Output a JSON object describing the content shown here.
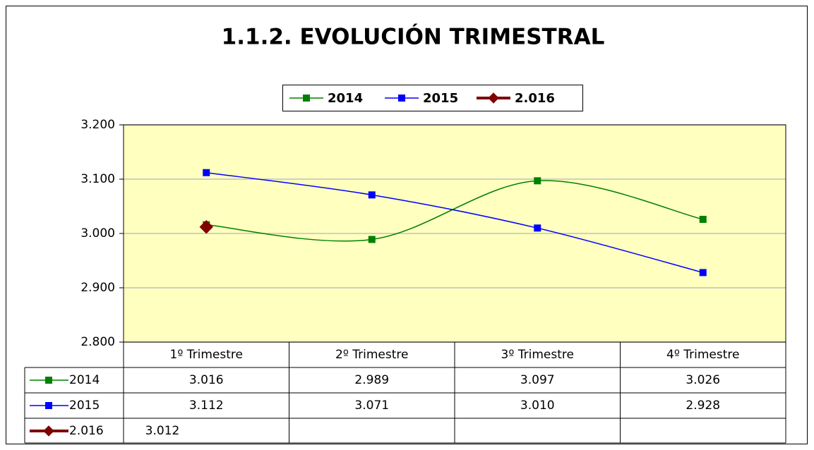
{
  "chart_data": {
    "type": "line",
    "title": "1.1.2. EVOLUCIÓN TRIMESTRAL",
    "categories": [
      "1º Trimestre",
      "2º Trimestre",
      "3º Trimestre",
      "4º Trimestre"
    ],
    "series": [
      {
        "name": "2014",
        "color": "#008000",
        "marker": "square",
        "values": [
          3016,
          2989,
          3097,
          3026
        ],
        "value_labels": [
          "3.016",
          "2.989",
          "3.097",
          "3.026"
        ]
      },
      {
        "name": "2015",
        "color": "#0000ff",
        "marker": "square",
        "values": [
          3112,
          3071,
          3010,
          2928
        ],
        "value_labels": [
          "3.112",
          "3.071",
          "3.010",
          "2.928"
        ]
      },
      {
        "name": "2.016",
        "color": "#800000",
        "marker": "diamond",
        "values": [
          3012,
          null,
          null,
          null
        ],
        "value_labels": [
          "3.012",
          null,
          null,
          null
        ]
      }
    ],
    "ylim": [
      2800,
      3200
    ],
    "yticks": [
      {
        "value": 2800,
        "label": "2.800"
      },
      {
        "value": 2900,
        "label": "2.900"
      },
      {
        "value": 3000,
        "label": "3.000"
      },
      {
        "value": 3100,
        "label": "3.100"
      },
      {
        "value": 3200,
        "label": "3.200"
      }
    ],
    "grid": true,
    "smooth": true,
    "legend": "top",
    "data_table": true
  }
}
